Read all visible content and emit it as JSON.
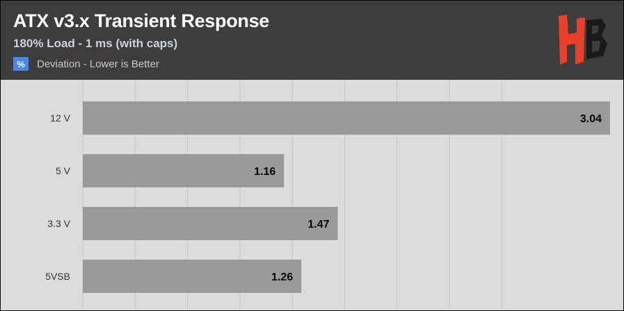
{
  "header": {
    "title": "ATX v3.x Transient Response",
    "subtitle": "180% Load - 1 ms (with caps)",
    "legend_icon_text": "%",
    "legend_label": "Deviation - Lower is Better",
    "logo_letters": "HB"
  },
  "colors": {
    "header_bg": "#3d3d3d",
    "plot_bg": "#dcdcdc",
    "bar": "#9a9a9a",
    "legend_icon": "#4a86e8",
    "logo_red": "#e8402a"
  },
  "chart_data": {
    "type": "bar",
    "orientation": "horizontal",
    "categories": [
      "12 V",
      "5 V",
      "3.3 V",
      "5VSB"
    ],
    "values": [
      3.04,
      1.16,
      1.47,
      1.26
    ],
    "xlim": [
      0,
      3.04
    ],
    "grid": true,
    "value_labels": true
  }
}
